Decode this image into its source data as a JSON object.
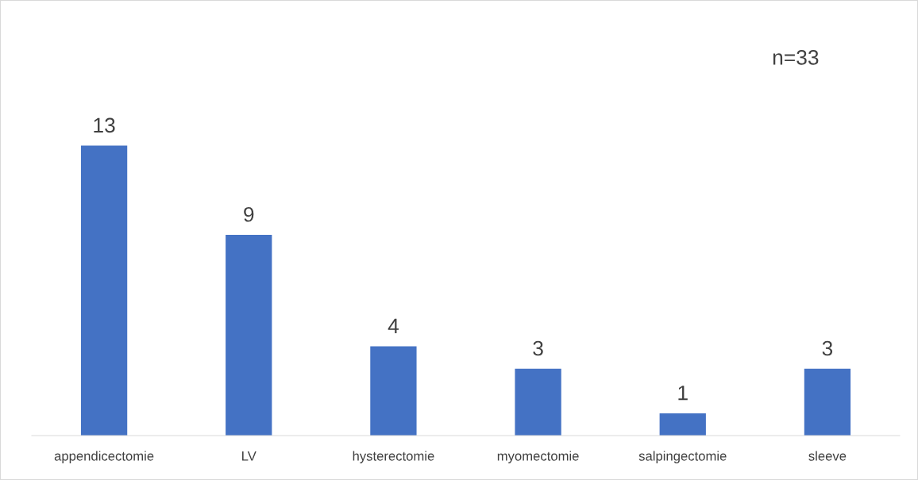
{
  "chart_data": {
    "type": "bar",
    "categories": [
      "appendicectomie",
      "LV",
      "hysterectomie",
      "myomectomie",
      "salpingectomie",
      "sleeve"
    ],
    "values": [
      13,
      9,
      4,
      3,
      1,
      3
    ],
    "color": "#4472c4",
    "data_labels": true,
    "legend": false,
    "annotations": [
      "n=33"
    ]
  }
}
